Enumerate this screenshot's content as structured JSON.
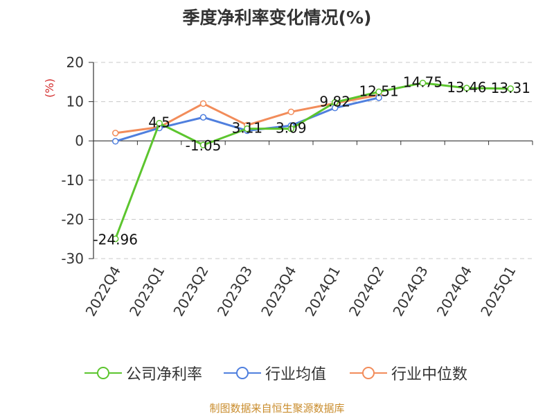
{
  "chart_data": {
    "type": "line",
    "title": "季度净利率变化情况(%)",
    "ylabel": "(%)",
    "categories": [
      "2022Q4",
      "2023Q1",
      "2023Q2",
      "2023Q3",
      "2023Q4",
      "2024Q1",
      "2024Q2",
      "2024Q3",
      "2024Q4",
      "2025Q1"
    ],
    "ylim": [
      -30,
      20
    ],
    "yticks": [
      20,
      10,
      0,
      -10,
      -20,
      -30
    ],
    "grid": true,
    "legend_position": "bottom",
    "series": [
      {
        "name": "公司净利率",
        "color": "#5cc52e",
        "values": [
          -24.96,
          4.5,
          -1.05,
          3.11,
          3.09,
          9.82,
          12.51,
          14.75,
          13.46,
          13.31
        ],
        "labels": [
          "-24.96",
          "4.5",
          "-1.05",
          "3.11",
          "3.09",
          "9.82",
          "12.51",
          "14.75",
          "13.46",
          "13.31"
        ]
      },
      {
        "name": "行业均值",
        "color": "#4f7fde",
        "values": [
          -0.1,
          3.3,
          6.0,
          2.6,
          3.9,
          8.4,
          11.0,
          null,
          null,
          null
        ]
      },
      {
        "name": "行业中位数",
        "color": "#f28c5a",
        "values": [
          2.0,
          3.5,
          9.5,
          4.0,
          7.4,
          9.6,
          11.7,
          null,
          null,
          null
        ]
      }
    ]
  },
  "source": "制图数据来自恒生聚源数据库"
}
